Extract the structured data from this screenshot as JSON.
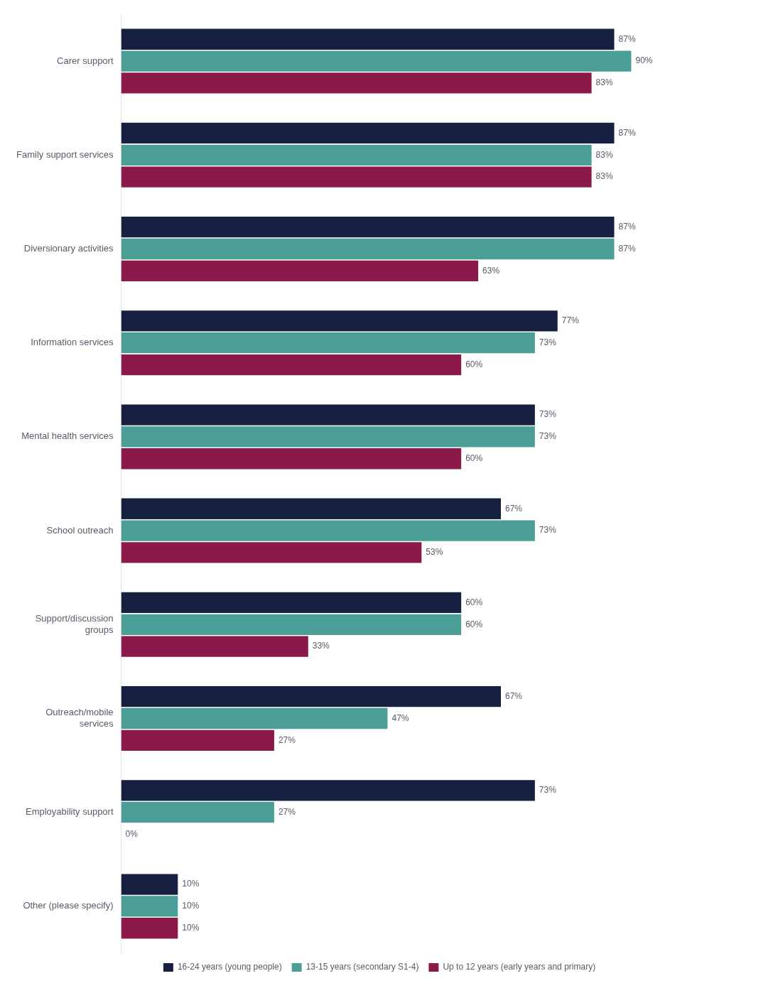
{
  "chart_data": {
    "type": "bar",
    "orientation": "horizontal",
    "categories": [
      "Carer support",
      "Family support services",
      "Diversionary activities",
      "Information services",
      "Mental health services",
      "School outreach",
      "Support/discussion\ngroups",
      "Outreach/mobile\nservices",
      "Employability support",
      "Other (please specify)"
    ],
    "series": [
      {
        "name": "16-24 years (young people)",
        "color": "#162040",
        "values": [
          87,
          87,
          87,
          77,
          73,
          67,
          60,
          67,
          73,
          10
        ],
        "value_labels": [
          "87%",
          "87%",
          "87%",
          "77%",
          "73%",
          "67%",
          "60%",
          "67%",
          "73%",
          "10%"
        ]
      },
      {
        "name": "13-15 years (secondary S1-4)",
        "color": "#4a9e96",
        "values": [
          90,
          83,
          87,
          73,
          73,
          73,
          60,
          47,
          27,
          10
        ],
        "value_labels": [
          "90%",
          "83%",
          "87%",
          "73%",
          "73%",
          "73%",
          "60%",
          "47%",
          "27%",
          "10%"
        ]
      },
      {
        "name": "Up to 12 years (early years and primary)",
        "color": "#8b1a4a",
        "values": [
          83,
          83,
          63,
          60,
          60,
          53,
          33,
          27,
          0,
          10
        ],
        "value_labels": [
          "83%",
          "83%",
          "63%",
          "60%",
          "60%",
          "53%",
          "33%",
          "27%",
          "0%",
          "10%"
        ]
      }
    ],
    "xlim": [
      0,
      110
    ],
    "tick_labels": "y",
    "data_labels": true,
    "legend": "bottom",
    "grid": false
  }
}
